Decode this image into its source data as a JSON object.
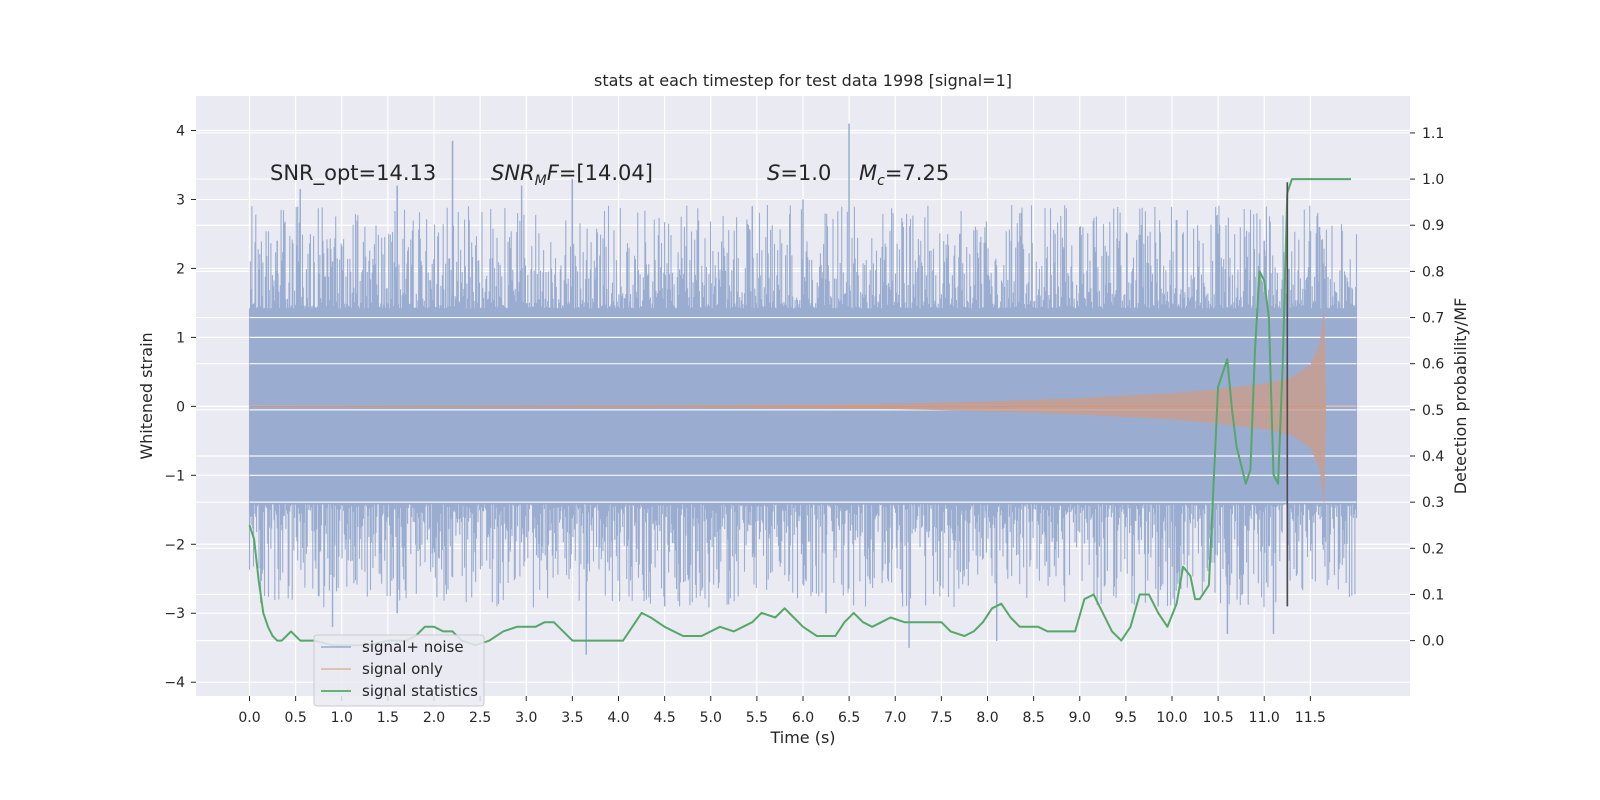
{
  "chart_data": {
    "type": "line",
    "title": "stats at each timestep for test data 1998 [signal=1]",
    "xlabel": "Time (s)",
    "ylabel": "Whitened strain",
    "y2label": "Detection probability/MF",
    "xlim": [
      -0.58,
      12.58
    ],
    "ylim": [
      -4.2,
      4.5
    ],
    "y2lim": [
      -0.12,
      1.18
    ],
    "xticks": [
      0.0,
      0.5,
      1.0,
      1.5,
      2.0,
      2.5,
      3.0,
      3.5,
      4.0,
      4.5,
      5.0,
      5.5,
      6.0,
      6.5,
      7.0,
      7.5,
      8.0,
      8.5,
      9.0,
      9.5,
      10.0,
      10.5,
      11.0,
      11.5
    ],
    "xtick_labels": [
      "0.0",
      "0.5",
      "1.0",
      "1.5",
      "2.0",
      "2.5",
      "3.0",
      "3.5",
      "4.0",
      "4.5",
      "5.0",
      "5.5",
      "6.0",
      "6.5",
      "7.0",
      "7.5",
      "8.0",
      "8.5",
      "9.0",
      "9.5",
      "10.0",
      "10.5",
      "11.0",
      "11.5"
    ],
    "yticks": [
      -4,
      -3,
      -2,
      -1,
      0,
      1,
      2,
      3,
      4
    ],
    "ytick_labels": [
      "−4",
      "−3",
      "−2",
      "−1",
      "0",
      "1",
      "2",
      "3",
      "4"
    ],
    "y2ticks": [
      0.0,
      0.1,
      0.2,
      0.3,
      0.4,
      0.5,
      0.6,
      0.7,
      0.8,
      0.9,
      1.0,
      1.1
    ],
    "y2tick_labels": [
      "0.0",
      "0.1",
      "0.2",
      "0.3",
      "0.4",
      "0.5",
      "0.6",
      "0.7",
      "0.8",
      "0.9",
      "1.0",
      "1.1"
    ],
    "grid": true,
    "legend_position": "lower-left",
    "noise_band": {
      "x_start": 0.0,
      "x_end": 12.0,
      "core": [
        -1.42,
        1.42
      ],
      "peaks_top": [
        [
          0.3,
          2.4
        ],
        [
          0.55,
          3.15
        ],
        [
          0.9,
          2.1
        ],
        [
          1.6,
          3.2
        ],
        [
          2.2,
          3.85
        ],
        [
          2.95,
          3.2
        ],
        [
          3.5,
          3.3
        ],
        [
          5.45,
          2.9
        ],
        [
          6.0,
          3.0
        ],
        [
          6.5,
          4.1
        ],
        [
          7.7,
          2.5
        ],
        [
          9.0,
          2.6
        ],
        [
          10.05,
          2.7
        ],
        [
          10.5,
          2.5
        ],
        [
          11.0,
          2.4
        ],
        [
          11.6,
          2.6
        ]
      ],
      "peaks_bottom": [
        [
          0.9,
          -3.2
        ],
        [
          1.6,
          -3.0
        ],
        [
          3.65,
          -3.6
        ],
        [
          4.5,
          -2.9
        ],
        [
          6.25,
          -3.0
        ],
        [
          7.15,
          -3.5
        ],
        [
          8.1,
          -3.4
        ],
        [
          9.85,
          -2.9
        ],
        [
          10.6,
          -3.3
        ],
        [
          11.1,
          -3.3
        ]
      ]
    },
    "signal_envelope": {
      "name": "signal only",
      "t": [
        0.0,
        5.0,
        7.0,
        8.0,
        9.0,
        10.0,
        10.5,
        11.0,
        11.3,
        11.5,
        11.6,
        11.65,
        11.67,
        12.0
      ],
      "amp": [
        0.01,
        0.02,
        0.04,
        0.07,
        0.12,
        0.19,
        0.25,
        0.33,
        0.42,
        0.6,
        0.9,
        1.45,
        0.0,
        0.0
      ]
    },
    "series": [
      {
        "name": "signal statistics",
        "color": "#55a868",
        "t": [
          0.0,
          0.05,
          0.1,
          0.15,
          0.2,
          0.25,
          0.3,
          0.35,
          0.4,
          0.45,
          0.55,
          0.7,
          0.9,
          1.1,
          1.3,
          1.5,
          1.7,
          1.8,
          1.9,
          2.0,
          2.1,
          2.2,
          2.3,
          2.45,
          2.6,
          2.75,
          2.9,
          3.0,
          3.1,
          3.2,
          3.3,
          3.4,
          3.5,
          3.7,
          3.9,
          4.05,
          4.15,
          4.25,
          4.35,
          4.5,
          4.7,
          4.9,
          5.1,
          5.25,
          5.35,
          5.45,
          5.55,
          5.7,
          5.8,
          5.9,
          6.0,
          6.15,
          6.35,
          6.45,
          6.55,
          6.65,
          6.75,
          6.85,
          6.95,
          7.1,
          7.2,
          7.35,
          7.5,
          7.6,
          7.75,
          7.85,
          7.95,
          8.05,
          8.15,
          8.25,
          8.35,
          8.45,
          8.55,
          8.65,
          8.75,
          8.85,
          8.95,
          9.05,
          9.15,
          9.25,
          9.35,
          9.45,
          9.55,
          9.65,
          9.75,
          9.85,
          9.95,
          10.05,
          10.12,
          10.2,
          10.25,
          10.3,
          10.4,
          10.5,
          10.6,
          10.65,
          10.7,
          10.8,
          10.85,
          10.9,
          10.95,
          11.0,
          11.05,
          11.1,
          11.15,
          11.2,
          11.25,
          11.3,
          11.35,
          11.4,
          11.5,
          11.6,
          11.7,
          11.8,
          11.94
        ],
        "values": [
          0.25,
          0.22,
          0.13,
          0.06,
          0.03,
          0.01,
          0.0,
          0.0,
          0.01,
          0.02,
          0.0,
          0.0,
          -0.01,
          -0.01,
          -0.01,
          0.0,
          0.0,
          0.01,
          0.03,
          0.03,
          0.02,
          0.02,
          0.0,
          -0.01,
          0.0,
          0.02,
          0.03,
          0.03,
          0.03,
          0.04,
          0.04,
          0.02,
          0.0,
          0.0,
          0.0,
          0.0,
          0.03,
          0.06,
          0.05,
          0.03,
          0.01,
          0.01,
          0.03,
          0.02,
          0.03,
          0.04,
          0.06,
          0.05,
          0.07,
          0.05,
          0.03,
          0.01,
          0.01,
          0.04,
          0.06,
          0.04,
          0.03,
          0.04,
          0.05,
          0.04,
          0.04,
          0.04,
          0.04,
          0.02,
          0.01,
          0.02,
          0.04,
          0.07,
          0.08,
          0.05,
          0.03,
          0.03,
          0.03,
          0.02,
          0.02,
          0.02,
          0.02,
          0.09,
          0.1,
          0.06,
          0.02,
          0.0,
          0.03,
          0.1,
          0.1,
          0.06,
          0.03,
          0.08,
          0.16,
          0.14,
          0.09,
          0.09,
          0.12,
          0.55,
          0.61,
          0.5,
          0.42,
          0.34,
          0.37,
          0.63,
          0.8,
          0.78,
          0.7,
          0.36,
          0.34,
          0.6,
          0.97,
          1.0,
          1.0,
          1.0,
          1.0,
          1.0,
          1.0,
          1.0,
          1.0
        ]
      }
    ],
    "vertical_marker": {
      "x": 11.25,
      "y_range": [
        -2.9,
        3.25
      ],
      "color": "#4c4c4c"
    },
    "annotations": {
      "snr_opt": "SNR_opt=14.13",
      "snr_mf_base": "SNR",
      "snr_mf_sub": "M",
      "snr_mf_italic": "F",
      "snr_mf_value": "=[14.04]",
      "s_label": "S",
      "s_value": "=1.0",
      "mc_label": "M",
      "mc_sub": "c",
      "mc_value": "=7.25"
    },
    "legend": [
      {
        "label": "signal+ noise",
        "color": "#4c72b0"
      },
      {
        "label": "signal only",
        "color": "#dd8452"
      },
      {
        "label": "signal statistics",
        "color": "#55a868"
      }
    ],
    "colors": {
      "background": "#eaeaf2",
      "grid": "#ffffff",
      "noise": "#9aadd0",
      "signal_fill": "#c79d8f",
      "signal_line": "#dd8452"
    }
  }
}
